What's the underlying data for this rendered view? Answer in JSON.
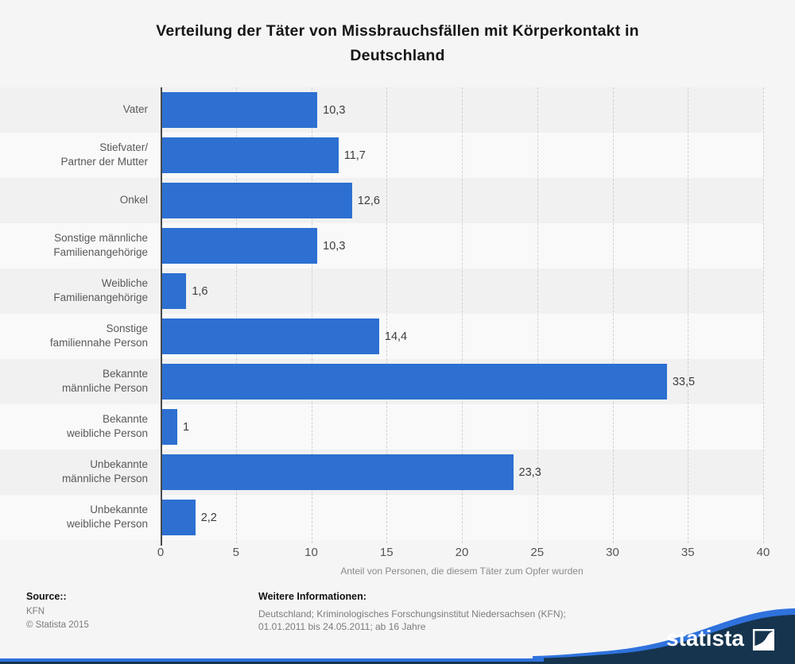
{
  "title": {
    "line1": "Verteilung der Täter von Missbrauchsfällen mit Körperkontakt in",
    "line2": "Deutschland"
  },
  "chart_data": {
    "type": "bar",
    "orientation": "horizontal",
    "categories": [
      "Vater",
      "Stiefvater/ Partner der Mutter",
      "Onkel",
      "Sonstige männliche Familienangehörige",
      "Weibliche Familienangehörige",
      "Sonstige familiennahe Person",
      "Bekannte männliche Person",
      "Bekannte weibliche Person",
      "Unbekannte männliche Person",
      "Unbekannte weibliche Person"
    ],
    "category_lines": [
      [
        "Vater"
      ],
      [
        "Stiefvater/",
        "Partner der Mutter"
      ],
      [
        "Onkel"
      ],
      [
        "Sonstige männliche",
        "Familienangehörige"
      ],
      [
        "Weibliche",
        "Familienangehörige"
      ],
      [
        "Sonstige",
        "familiennahe Person"
      ],
      [
        "Bekannte",
        "männliche Person"
      ],
      [
        "Bekannte",
        "weibliche Person"
      ],
      [
        "Unbekannte",
        "männliche Person"
      ],
      [
        "Unbekannte",
        "weibliche Person"
      ]
    ],
    "values": [
      10.3,
      11.7,
      12.6,
      10.3,
      1.6,
      14.4,
      33.5,
      1,
      23.3,
      2.2
    ],
    "value_labels": [
      "10,3",
      "11,7",
      "12,6",
      "10,3",
      "1,6",
      "14,4",
      "33,5",
      "1",
      "23,3",
      "2,2"
    ],
    "xlabel": "Anteil von Personen, die diesem Täter zum Opfer wurden",
    "xlim": [
      0,
      40
    ],
    "xticks": [
      0,
      5,
      10,
      15,
      20,
      25,
      30,
      35,
      40
    ],
    "grid": true,
    "legend": "none",
    "bar_color": "#2d70d1",
    "stripe_colors": [
      "#f1f1f1",
      "#f9f9f9"
    ]
  },
  "footer": {
    "source_label": "Source::",
    "source_name": "KFN",
    "copyright": "© Statista 2015",
    "info_label": "Weitere Informationen:",
    "info_line1": "Deutschland; Kriminologisches Forschungsinstitut Niedersachsen (KFN);",
    "info_line2": "01.01.2011 bis 24.05.2011; ab 16 Jahre"
  },
  "branding": {
    "logo_text": "statista",
    "navy": "#16344e",
    "blue": "#2f72dd"
  }
}
